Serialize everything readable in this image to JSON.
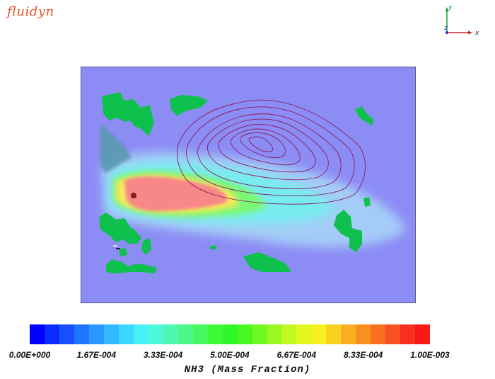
{
  "logo": {
    "text": "fluidyn",
    "color": "#e2542c"
  },
  "axes": {
    "y_label": "y",
    "x_label": "x",
    "z_label": "z"
  },
  "plot": {
    "background": "#8c8cf5",
    "source_color": "#7a1c1c",
    "green_patch_color": "#0ec04c",
    "contour_color": "#8a1a5a"
  },
  "colorbar": {
    "title": "NH3 (Mass Fraction)",
    "colors": [
      "#0000ff",
      "#0a2bff",
      "#1450ff",
      "#1e75ff",
      "#2898ff",
      "#32b8ff",
      "#3cd8ff",
      "#46f0f8",
      "#4ff8d8",
      "#4ef8b0",
      "#4cf888",
      "#48f860",
      "#3ef83a",
      "#30f828",
      "#48f820",
      "#70f820",
      "#98f820",
      "#c0f820",
      "#e0f820",
      "#f8f020",
      "#f8d020",
      "#f8b020",
      "#f89020",
      "#f87020",
      "#f85020",
      "#f83020",
      "#f81818"
    ],
    "ticks": [
      "0.00E+000",
      "1.67E-004",
      "3.33E-004",
      "5.00E-004",
      "6.67E-004",
      "8.33E-004",
      "1.00E-003"
    ]
  }
}
